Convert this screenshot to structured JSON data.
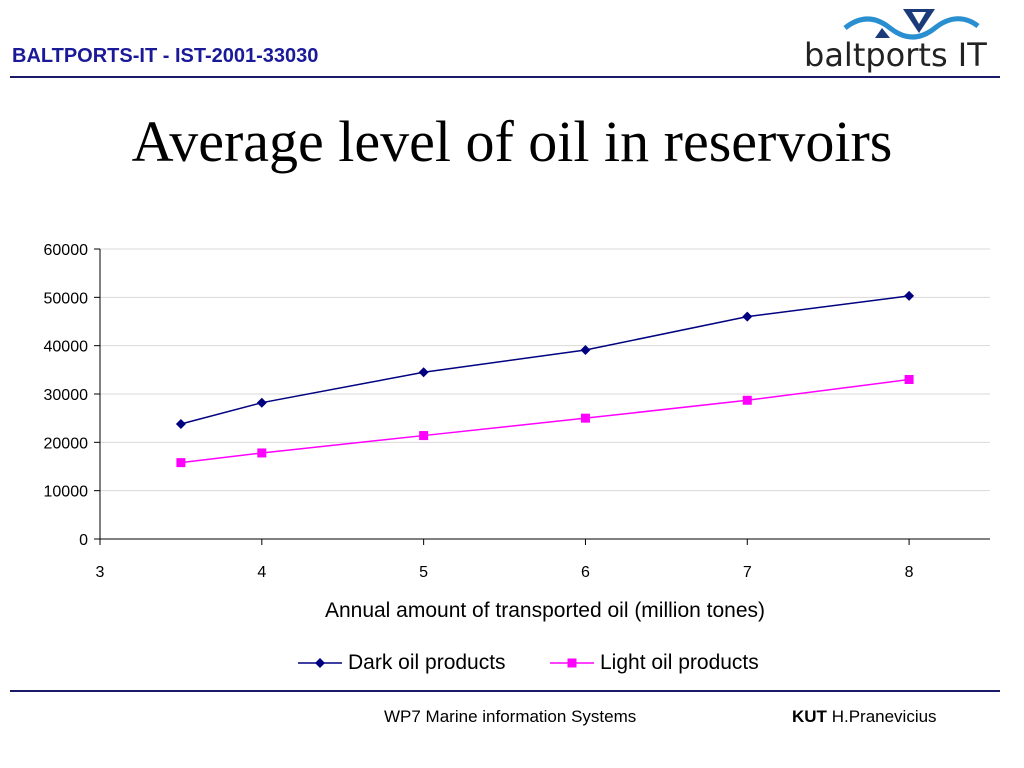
{
  "header": {
    "project": "BALTPORTS-IT - IST-2001-33030",
    "logo_text": "baltports IT"
  },
  "slide": {
    "title": "Average level of oil in reservoirs"
  },
  "footer": {
    "workpackage": "WP7 Marine information Systems",
    "org": "KUT",
    "author": "H.Pranevicius"
  },
  "colors": {
    "header_text": "#1a1a99",
    "dark_series": "#000080",
    "light_series": "#ff00ff",
    "rule": "#1a1a66"
  },
  "chart_data": {
    "type": "scatter",
    "title": "",
    "xlabel": "Annual amount of transported oil (million tones)",
    "ylabel": "",
    "xlim": [
      3,
      8.5
    ],
    "ylim": [
      0,
      60000
    ],
    "x_ticks": [
      3,
      4,
      5,
      6,
      7,
      8
    ],
    "y_ticks": [
      0,
      10000,
      20000,
      30000,
      40000,
      50000,
      60000
    ],
    "grid": "horizontal",
    "legend_position": "bottom",
    "series": [
      {
        "name": "Dark oil products",
        "marker": "diamond",
        "color": "#000080",
        "x": [
          3.5,
          4,
          5,
          6,
          7,
          8
        ],
        "y": [
          23800,
          28200,
          34500,
          39100,
          46000,
          50300
        ]
      },
      {
        "name": "Light oil products",
        "marker": "square",
        "color": "#ff00ff",
        "x": [
          3.5,
          4,
          5,
          6,
          7,
          8
        ],
        "y": [
          15800,
          17800,
          21400,
          25000,
          28700,
          33000
        ]
      }
    ]
  }
}
